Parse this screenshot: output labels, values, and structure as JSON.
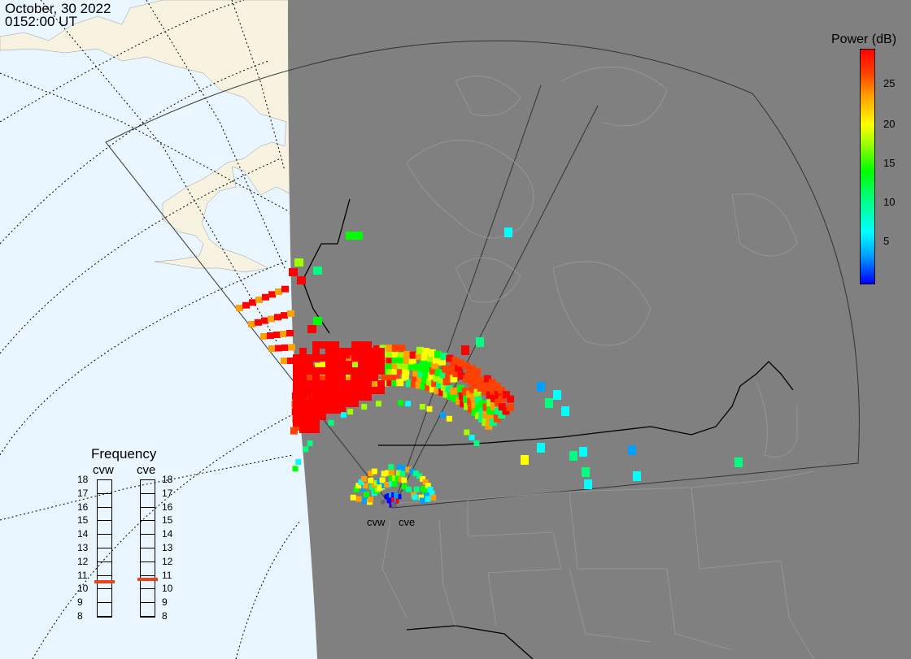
{
  "header": {
    "date": "October, 30 2022",
    "time": "0152:00 UT"
  },
  "colorbar": {
    "title": "Power (dB)",
    "ticks": [
      "25",
      "20",
      "15",
      "10",
      "5"
    ]
  },
  "frequency": {
    "title": "Frequency",
    "left_label": "cvw",
    "right_label": "cve",
    "ticks": [
      "18",
      "17",
      "16",
      "15",
      "14",
      "13",
      "12",
      "11",
      "10",
      "9",
      "8"
    ],
    "cvw_value": 10.5,
    "cve_value": 10.7
  },
  "radars": {
    "west": "cvw",
    "east": "cve"
  },
  "colors": {
    "ocean": "#e9f6ff",
    "land_day": "#f7f3e0",
    "night": "#808080",
    "scatter_high": "#ff0000",
    "freq_marker": "#e8441b"
  }
}
